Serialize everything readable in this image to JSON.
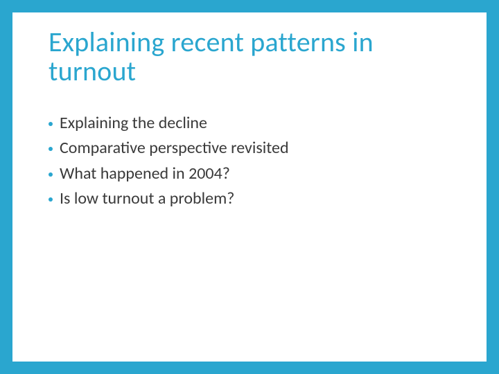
{
  "colors": {
    "accent": "#2aa6cf",
    "titleColor": "#2aa6cf",
    "bulletDotColor": "#2aa6cf",
    "bodyTextColor": "#3a3a3a",
    "background": "#ffffff"
  },
  "layout": {
    "borderWidth": 18,
    "titleFontSize": 40,
    "bulletFontSize": 24
  },
  "title": "Explaining recent patterns in turnout",
  "bullets": [
    "Explaining the decline",
    "Comparative perspective revisited",
    "What happened in 2004?",
    "Is low turnout a problem?"
  ]
}
